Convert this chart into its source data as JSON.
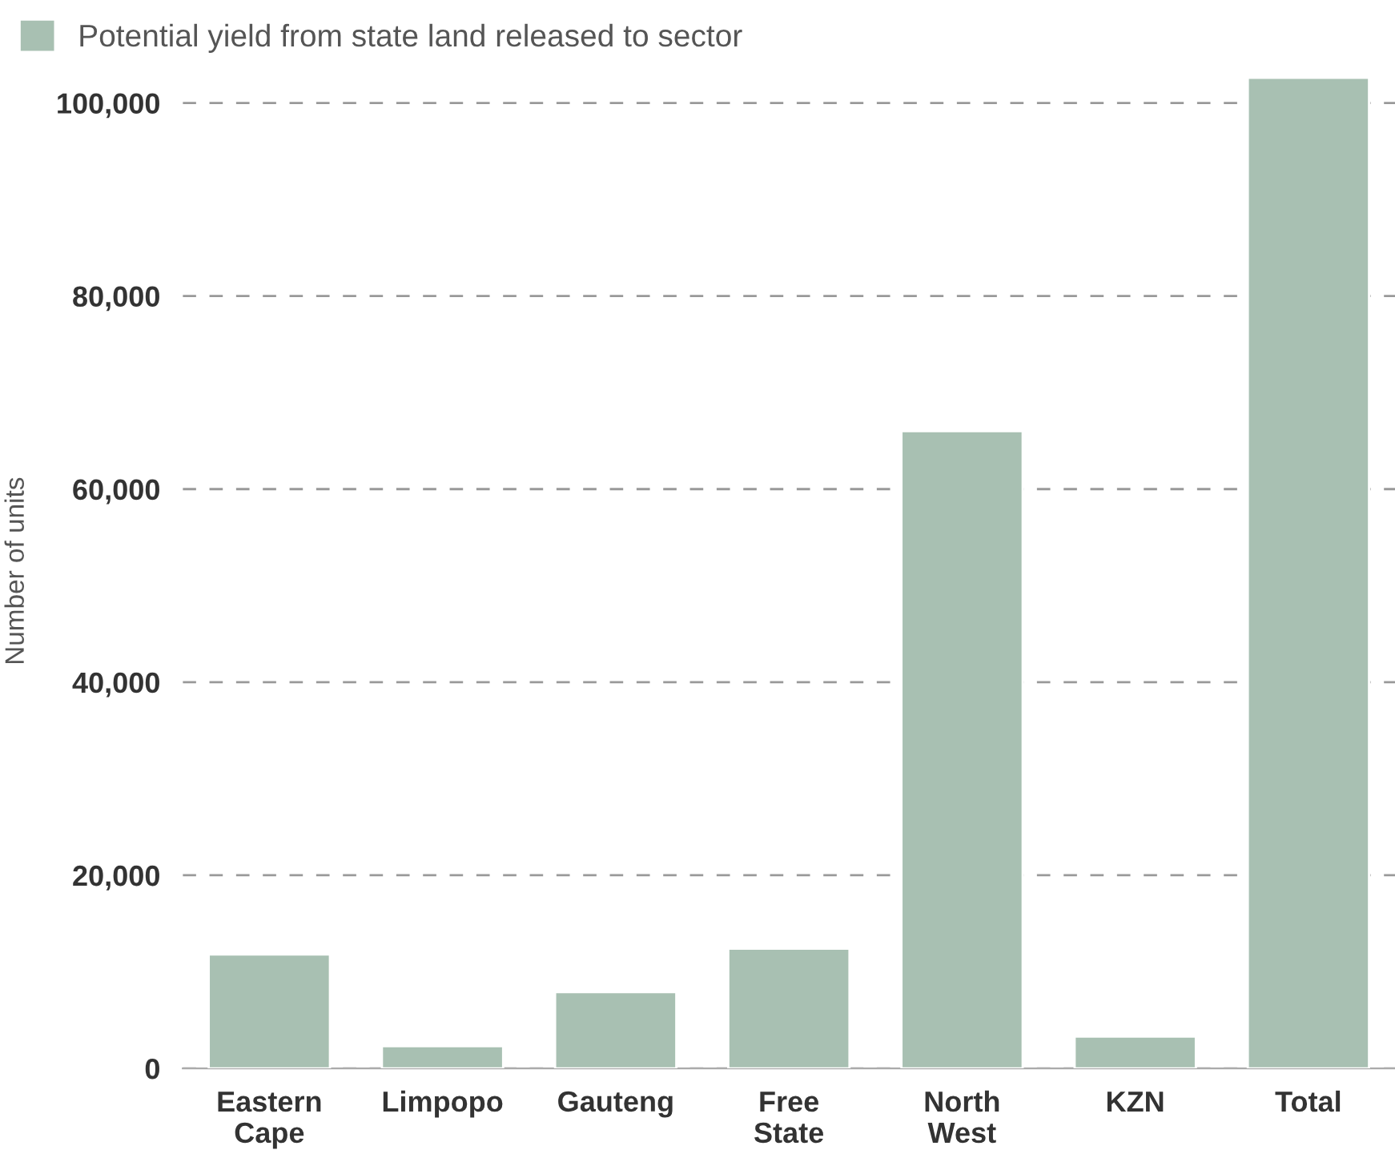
{
  "chart_data": {
    "type": "bar",
    "ylabel": "Number of units",
    "categories": [
      "Eastern\nCape",
      "Limpopo",
      "Gauteng",
      "Free\nState",
      "North\nWest",
      "KZN",
      "Total"
    ],
    "series": [
      {
        "name": "Potential yield from state land released to sector",
        "color": "#a8c0b2",
        "values": [
          11800,
          2300,
          7900,
          12400,
          66000,
          3300,
          102600
        ]
      }
    ],
    "ylim": [
      0,
      103000
    ],
    "yticks": [
      {
        "value": 0,
        "label": "0"
      },
      {
        "value": 20000,
        "label": "20,000"
      },
      {
        "value": 40000,
        "label": "40,000"
      },
      {
        "value": 60000,
        "label": "60,000"
      },
      {
        "value": 80000,
        "label": "80,000"
      },
      {
        "value": 100000,
        "label": "100,000"
      }
    ],
    "grid": "y",
    "legend": "top left"
  }
}
